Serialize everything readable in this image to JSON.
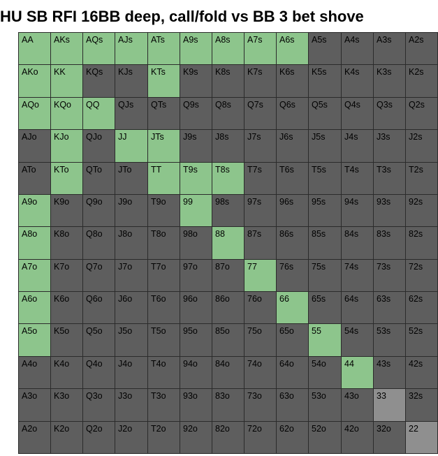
{
  "title": "HU SB RFI 16BB deep, call/fold vs BB 3 bet shove",
  "chart_data": {
    "type": "heatmap",
    "title": "HU SB RFI 16BB deep, call/fold vs BB 3 bet shove",
    "ranks": [
      "A",
      "K",
      "Q",
      "J",
      "T",
      "9",
      "8",
      "7",
      "6",
      "5",
      "4",
      "3",
      "2"
    ],
    "colors": {
      "call": "#8dc58c",
      "fold": "#5e5e5e",
      "partial": "#8f8f8f"
    },
    "legend": [],
    "cells": [
      [
        "AA",
        "AKs",
        "AQs",
        "AJs",
        "ATs",
        "A9s",
        "A8s",
        "A7s",
        "A6s",
        "A5s",
        "A4s",
        "A3s",
        "A2s"
      ],
      [
        "AKo",
        "KK",
        "KQs",
        "KJs",
        "KTs",
        "K9s",
        "K8s",
        "K7s",
        "K6s",
        "K5s",
        "K4s",
        "K3s",
        "K2s"
      ],
      [
        "AQo",
        "KQo",
        "QQ",
        "QJs",
        "QTs",
        "Q9s",
        "Q8s",
        "Q7s",
        "Q6s",
        "Q5s",
        "Q4s",
        "Q3s",
        "Q2s"
      ],
      [
        "AJo",
        "KJo",
        "QJo",
        "JJ",
        "JTs",
        "J9s",
        "J8s",
        "J7s",
        "J6s",
        "J5s",
        "J4s",
        "J3s",
        "J2s"
      ],
      [
        "ATo",
        "KTo",
        "QTo",
        "JTo",
        "TT",
        "T9s",
        "T8s",
        "T7s",
        "T6s",
        "T5s",
        "T4s",
        "T3s",
        "T2s"
      ],
      [
        "A9o",
        "K9o",
        "Q9o",
        "J9o",
        "T9o",
        "99",
        "98s",
        "97s",
        "96s",
        "95s",
        "94s",
        "93s",
        "92s"
      ],
      [
        "A8o",
        "K8o",
        "Q8o",
        "J8o",
        "T8o",
        "98o",
        "88",
        "87s",
        "86s",
        "85s",
        "84s",
        "83s",
        "82s"
      ],
      [
        "A7o",
        "K7o",
        "Q7o",
        "J7o",
        "T7o",
        "97o",
        "87o",
        "77",
        "76s",
        "75s",
        "74s",
        "73s",
        "72s"
      ],
      [
        "A6o",
        "K6o",
        "Q6o",
        "J6o",
        "T6o",
        "96o",
        "86o",
        "76o",
        "66",
        "65s",
        "64s",
        "63s",
        "62s"
      ],
      [
        "A5o",
        "K5o",
        "Q5o",
        "J5o",
        "T5o",
        "95o",
        "85o",
        "75o",
        "65o",
        "55",
        "54s",
        "53s",
        "52s"
      ],
      [
        "A4o",
        "K4o",
        "Q4o",
        "J4o",
        "T4o",
        "94o",
        "84o",
        "74o",
        "64o",
        "54o",
        "44",
        "43s",
        "42s"
      ],
      [
        "A3o",
        "K3o",
        "Q3o",
        "J3o",
        "T3o",
        "93o",
        "83o",
        "73o",
        "63o",
        "53o",
        "43o",
        "33",
        "32s"
      ],
      [
        "A2o",
        "K2o",
        "Q2o",
        "J2o",
        "T2o",
        "92o",
        "82o",
        "72o",
        "62o",
        "52o",
        "42o",
        "32o",
        "22"
      ]
    ],
    "actions": [
      [
        "call",
        "call",
        "call",
        "call",
        "call",
        "call",
        "call",
        "call",
        "call",
        "fold",
        "fold",
        "fold",
        "fold"
      ],
      [
        "call",
        "call",
        "fold",
        "fold",
        "call",
        "fold",
        "fold",
        "fold",
        "fold",
        "fold",
        "fold",
        "fold",
        "fold"
      ],
      [
        "call",
        "call",
        "call",
        "fold",
        "fold",
        "fold",
        "fold",
        "fold",
        "fold",
        "fold",
        "fold",
        "fold",
        "fold"
      ],
      [
        "fold",
        "call",
        "fold",
        "call",
        "call",
        "fold",
        "fold",
        "fold",
        "fold",
        "fold",
        "fold",
        "fold",
        "fold"
      ],
      [
        "fold",
        "call",
        "fold",
        "fold",
        "call",
        "call",
        "call",
        "fold",
        "fold",
        "fold",
        "fold",
        "fold",
        "fold"
      ],
      [
        "call",
        "fold",
        "fold",
        "fold",
        "fold",
        "call",
        "fold",
        "fold",
        "fold",
        "fold",
        "fold",
        "fold",
        "fold"
      ],
      [
        "call",
        "fold",
        "fold",
        "fold",
        "fold",
        "fold",
        "call",
        "fold",
        "fold",
        "fold",
        "fold",
        "fold",
        "fold"
      ],
      [
        "call",
        "fold",
        "fold",
        "fold",
        "fold",
        "fold",
        "fold",
        "call",
        "fold",
        "fold",
        "fold",
        "fold",
        "fold"
      ],
      [
        "call",
        "fold",
        "fold",
        "fold",
        "fold",
        "fold",
        "fold",
        "fold",
        "call",
        "fold",
        "fold",
        "fold",
        "fold"
      ],
      [
        "call",
        "fold",
        "fold",
        "fold",
        "fold",
        "fold",
        "fold",
        "fold",
        "fold",
        "call",
        "fold",
        "fold",
        "fold"
      ],
      [
        "fold",
        "fold",
        "fold",
        "fold",
        "fold",
        "fold",
        "fold",
        "fold",
        "fold",
        "fold",
        "call",
        "fold",
        "fold"
      ],
      [
        "fold",
        "fold",
        "fold",
        "fold",
        "fold",
        "fold",
        "fold",
        "fold",
        "fold",
        "fold",
        "fold",
        "partial",
        "fold"
      ],
      [
        "fold",
        "fold",
        "fold",
        "fold",
        "fold",
        "fold",
        "fold",
        "fold",
        "fold",
        "fold",
        "fold",
        "fold",
        "partial"
      ]
    ]
  }
}
